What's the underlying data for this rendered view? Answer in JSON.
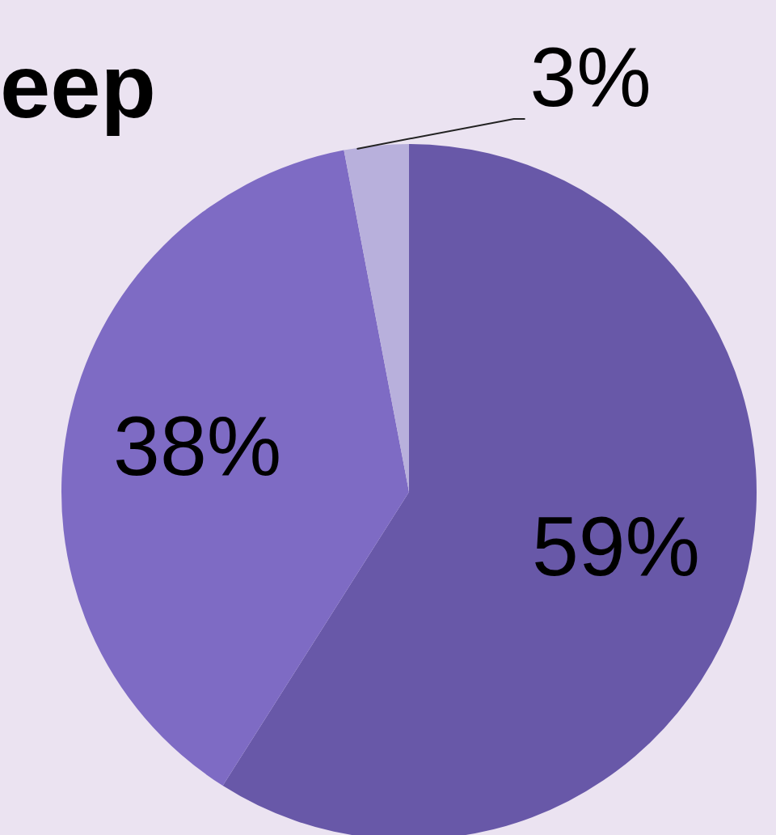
{
  "chart_data": {
    "type": "pie",
    "title": "eep",
    "categories": [
      null,
      null,
      null
    ],
    "values": [
      59,
      38,
      3
    ],
    "colors": [
      "#6858a8",
      "#7e6bc4",
      "#b8b0dc"
    ],
    "value_labels": [
      "59%",
      "38%",
      "3%"
    ],
    "legend": false
  }
}
